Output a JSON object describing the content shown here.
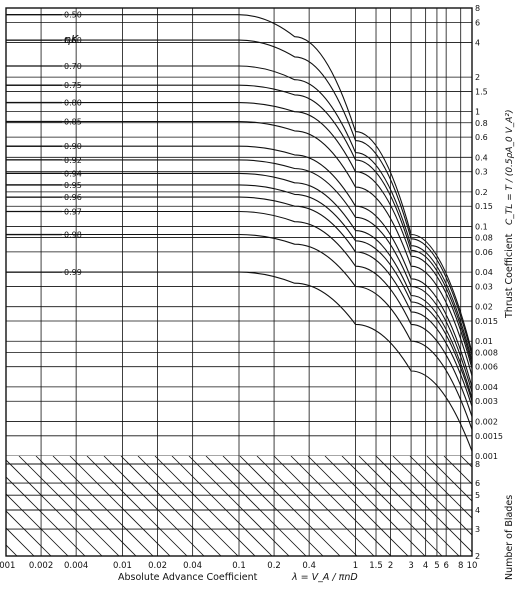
{
  "chart_data": {
    "type": "line",
    "title": "",
    "xlabel": "Absolute Advance Coefficient",
    "xlabel_formula": "λ = V_A / πnD",
    "ylabel": "Thrust Coefficient",
    "ylabel_formula": "C_TL = T / (0.5ρA_0 V_A²)",
    "eta_label": "ηK",
    "blades_label": "Number of Blades",
    "x_scale": "log",
    "y_scale": "log",
    "xlim": [
      0.001,
      10
    ],
    "ylim": [
      0.001,
      8
    ],
    "grid": true,
    "x_ticks": [
      {
        "v": 0.001,
        "t": ".001"
      },
      {
        "v": 0.002,
        "t": "0.002"
      },
      {
        "v": 0.004,
        "t": "0.004"
      },
      {
        "v": 0.01,
        "t": "0.01"
      },
      {
        "v": 0.02,
        "t": "0.02"
      },
      {
        "v": 0.04,
        "t": "0.04"
      },
      {
        "v": 0.1,
        "t": "0.1"
      },
      {
        "v": 0.2,
        "t": "0.2"
      },
      {
        "v": 0.4,
        "t": "0.4"
      },
      {
        "v": 1,
        "t": "1"
      },
      {
        "v": 1.5,
        "t": "1.5"
      },
      {
        "v": 2,
        "t": "2"
      },
      {
        "v": 3,
        "t": "3"
      },
      {
        "v": 4,
        "t": "4"
      },
      {
        "v": 5,
        "t": "5"
      },
      {
        "v": 6,
        "t": "6"
      },
      {
        "v": 8,
        "t": "8"
      },
      {
        "v": 10,
        "t": "10"
      }
    ],
    "y_ticks": [
      {
        "v": 8,
        "t": "8"
      },
      {
        "v": 6,
        "t": "6"
      },
      {
        "v": 4,
        "t": "4"
      },
      {
        "v": 2,
        "t": "2"
      },
      {
        "v": 1.5,
        "t": "1.5"
      },
      {
        "v": 1,
        "t": "1"
      },
      {
        "v": 0.8,
        "t": "0.8"
      },
      {
        "v": 0.6,
        "t": "0.6"
      },
      {
        "v": 0.4,
        "t": "0.4"
      },
      {
        "v": 0.3,
        "t": "0.3"
      },
      {
        "v": 0.2,
        "t": "0.2"
      },
      {
        "v": 0.15,
        "t": "0.15"
      },
      {
        "v": 0.1,
        "t": "0.1"
      },
      {
        "v": 0.08,
        "t": "0.08"
      },
      {
        "v": 0.06,
        "t": "0.06"
      },
      {
        "v": 0.04,
        "t": "0.04"
      },
      {
        "v": 0.03,
        "t": "0.03"
      },
      {
        "v": 0.02,
        "t": "0.02"
      },
      {
        "v": 0.015,
        "t": "0.015"
      },
      {
        "v": 0.01,
        "t": "0.01"
      },
      {
        "v": 0.008,
        "t": "0.008"
      },
      {
        "v": 0.006,
        "t": "0.006"
      },
      {
        "v": 0.004,
        "t": "0.004"
      },
      {
        "v": 0.003,
        "t": "0.003"
      },
      {
        "v": 0.002,
        "t": "0.002"
      },
      {
        "v": 0.0015,
        "t": "0.0015"
      },
      {
        "v": 0.001,
        "t": "0.001"
      }
    ],
    "blade_ticks": [
      {
        "v": 8,
        "t": "8"
      },
      {
        "v": 6,
        "t": "6"
      },
      {
        "v": 5,
        "t": "5"
      },
      {
        "v": 4,
        "t": "4"
      },
      {
        "v": 3,
        "t": "3"
      },
      {
        "v": 2,
        "t": "2"
      }
    ],
    "series": [
      {
        "name": "0.50",
        "values": [
          [
            0.001,
            7.0
          ],
          [
            0.1,
            7.0
          ],
          [
            0.3,
            4.5
          ],
          [
            1,
            0.67
          ],
          [
            3,
            0.085
          ],
          [
            10,
            0.008
          ]
        ]
      },
      {
        "name": "0.60",
        "values": [
          [
            0.001,
            4.2
          ],
          [
            0.1,
            4.2
          ],
          [
            0.3,
            3.0
          ],
          [
            1,
            0.56
          ],
          [
            3,
            0.078
          ],
          [
            10,
            0.0075
          ]
        ]
      },
      {
        "name": "0.70",
        "values": [
          [
            0.001,
            2.5
          ],
          [
            0.1,
            2.5
          ],
          [
            0.3,
            1.9
          ],
          [
            1,
            0.44
          ],
          [
            3,
            0.068
          ],
          [
            10,
            0.0068
          ]
        ]
      },
      {
        "name": "0.75",
        "values": [
          [
            0.001,
            1.7
          ],
          [
            0.1,
            1.7
          ],
          [
            0.3,
            1.4
          ],
          [
            1,
            0.38
          ],
          [
            3,
            0.062
          ],
          [
            10,
            0.0063
          ]
        ]
      },
      {
        "name": "0.80",
        "values": [
          [
            0.001,
            1.2
          ],
          [
            0.1,
            1.2
          ],
          [
            0.3,
            1.0
          ],
          [
            1,
            0.3
          ],
          [
            3,
            0.055
          ],
          [
            10,
            0.0058
          ]
        ]
      },
      {
        "name": "0.85",
        "values": [
          [
            0.001,
            0.82
          ],
          [
            0.1,
            0.82
          ],
          [
            0.3,
            0.68
          ],
          [
            1,
            0.22
          ],
          [
            3,
            0.045
          ],
          [
            10,
            0.005
          ]
        ]
      },
      {
        "name": "0.90",
        "values": [
          [
            0.001,
            0.5
          ],
          [
            0.1,
            0.5
          ],
          [
            0.3,
            0.42
          ],
          [
            1,
            0.15
          ],
          [
            3,
            0.035
          ],
          [
            10,
            0.004
          ]
        ]
      },
      {
        "name": "0.92",
        "values": [
          [
            0.001,
            0.38
          ],
          [
            0.1,
            0.38
          ],
          [
            0.3,
            0.32
          ],
          [
            1,
            0.12
          ],
          [
            3,
            0.03
          ],
          [
            10,
            0.0036
          ]
        ]
      },
      {
        "name": "0.94",
        "values": [
          [
            0.001,
            0.29
          ],
          [
            0.1,
            0.29
          ],
          [
            0.3,
            0.24
          ],
          [
            1,
            0.092
          ],
          [
            3,
            0.025
          ],
          [
            10,
            0.0032
          ]
        ]
      },
      {
        "name": "0.95",
        "values": [
          [
            0.001,
            0.23
          ],
          [
            0.1,
            0.23
          ],
          [
            0.3,
            0.19
          ],
          [
            1,
            0.075
          ],
          [
            3,
            0.022
          ],
          [
            10,
            0.003
          ]
        ]
      },
      {
        "name": "0.96",
        "values": [
          [
            0.001,
            0.18
          ],
          [
            0.1,
            0.18
          ],
          [
            0.3,
            0.15
          ],
          [
            1,
            0.06
          ],
          [
            3,
            0.018
          ],
          [
            10,
            0.0027
          ]
        ]
      },
      {
        "name": "0.97",
        "values": [
          [
            0.001,
            0.135
          ],
          [
            0.1,
            0.135
          ],
          [
            0.3,
            0.11
          ],
          [
            1,
            0.045
          ],
          [
            3,
            0.014
          ],
          [
            10,
            0.0022
          ]
        ]
      },
      {
        "name": "0.98",
        "values": [
          [
            0.001,
            0.085
          ],
          [
            0.1,
            0.085
          ],
          [
            0.3,
            0.07
          ],
          [
            1,
            0.03
          ],
          [
            3,
            0.01
          ],
          [
            10,
            0.0017
          ]
        ]
      },
      {
        "name": "0.99",
        "values": [
          [
            0.001,
            0.04
          ],
          [
            0.1,
            0.04
          ],
          [
            0.3,
            0.032
          ],
          [
            1,
            0.014
          ],
          [
            3,
            0.0055
          ],
          [
            10,
            0.0011
          ]
        ]
      }
    ]
  }
}
